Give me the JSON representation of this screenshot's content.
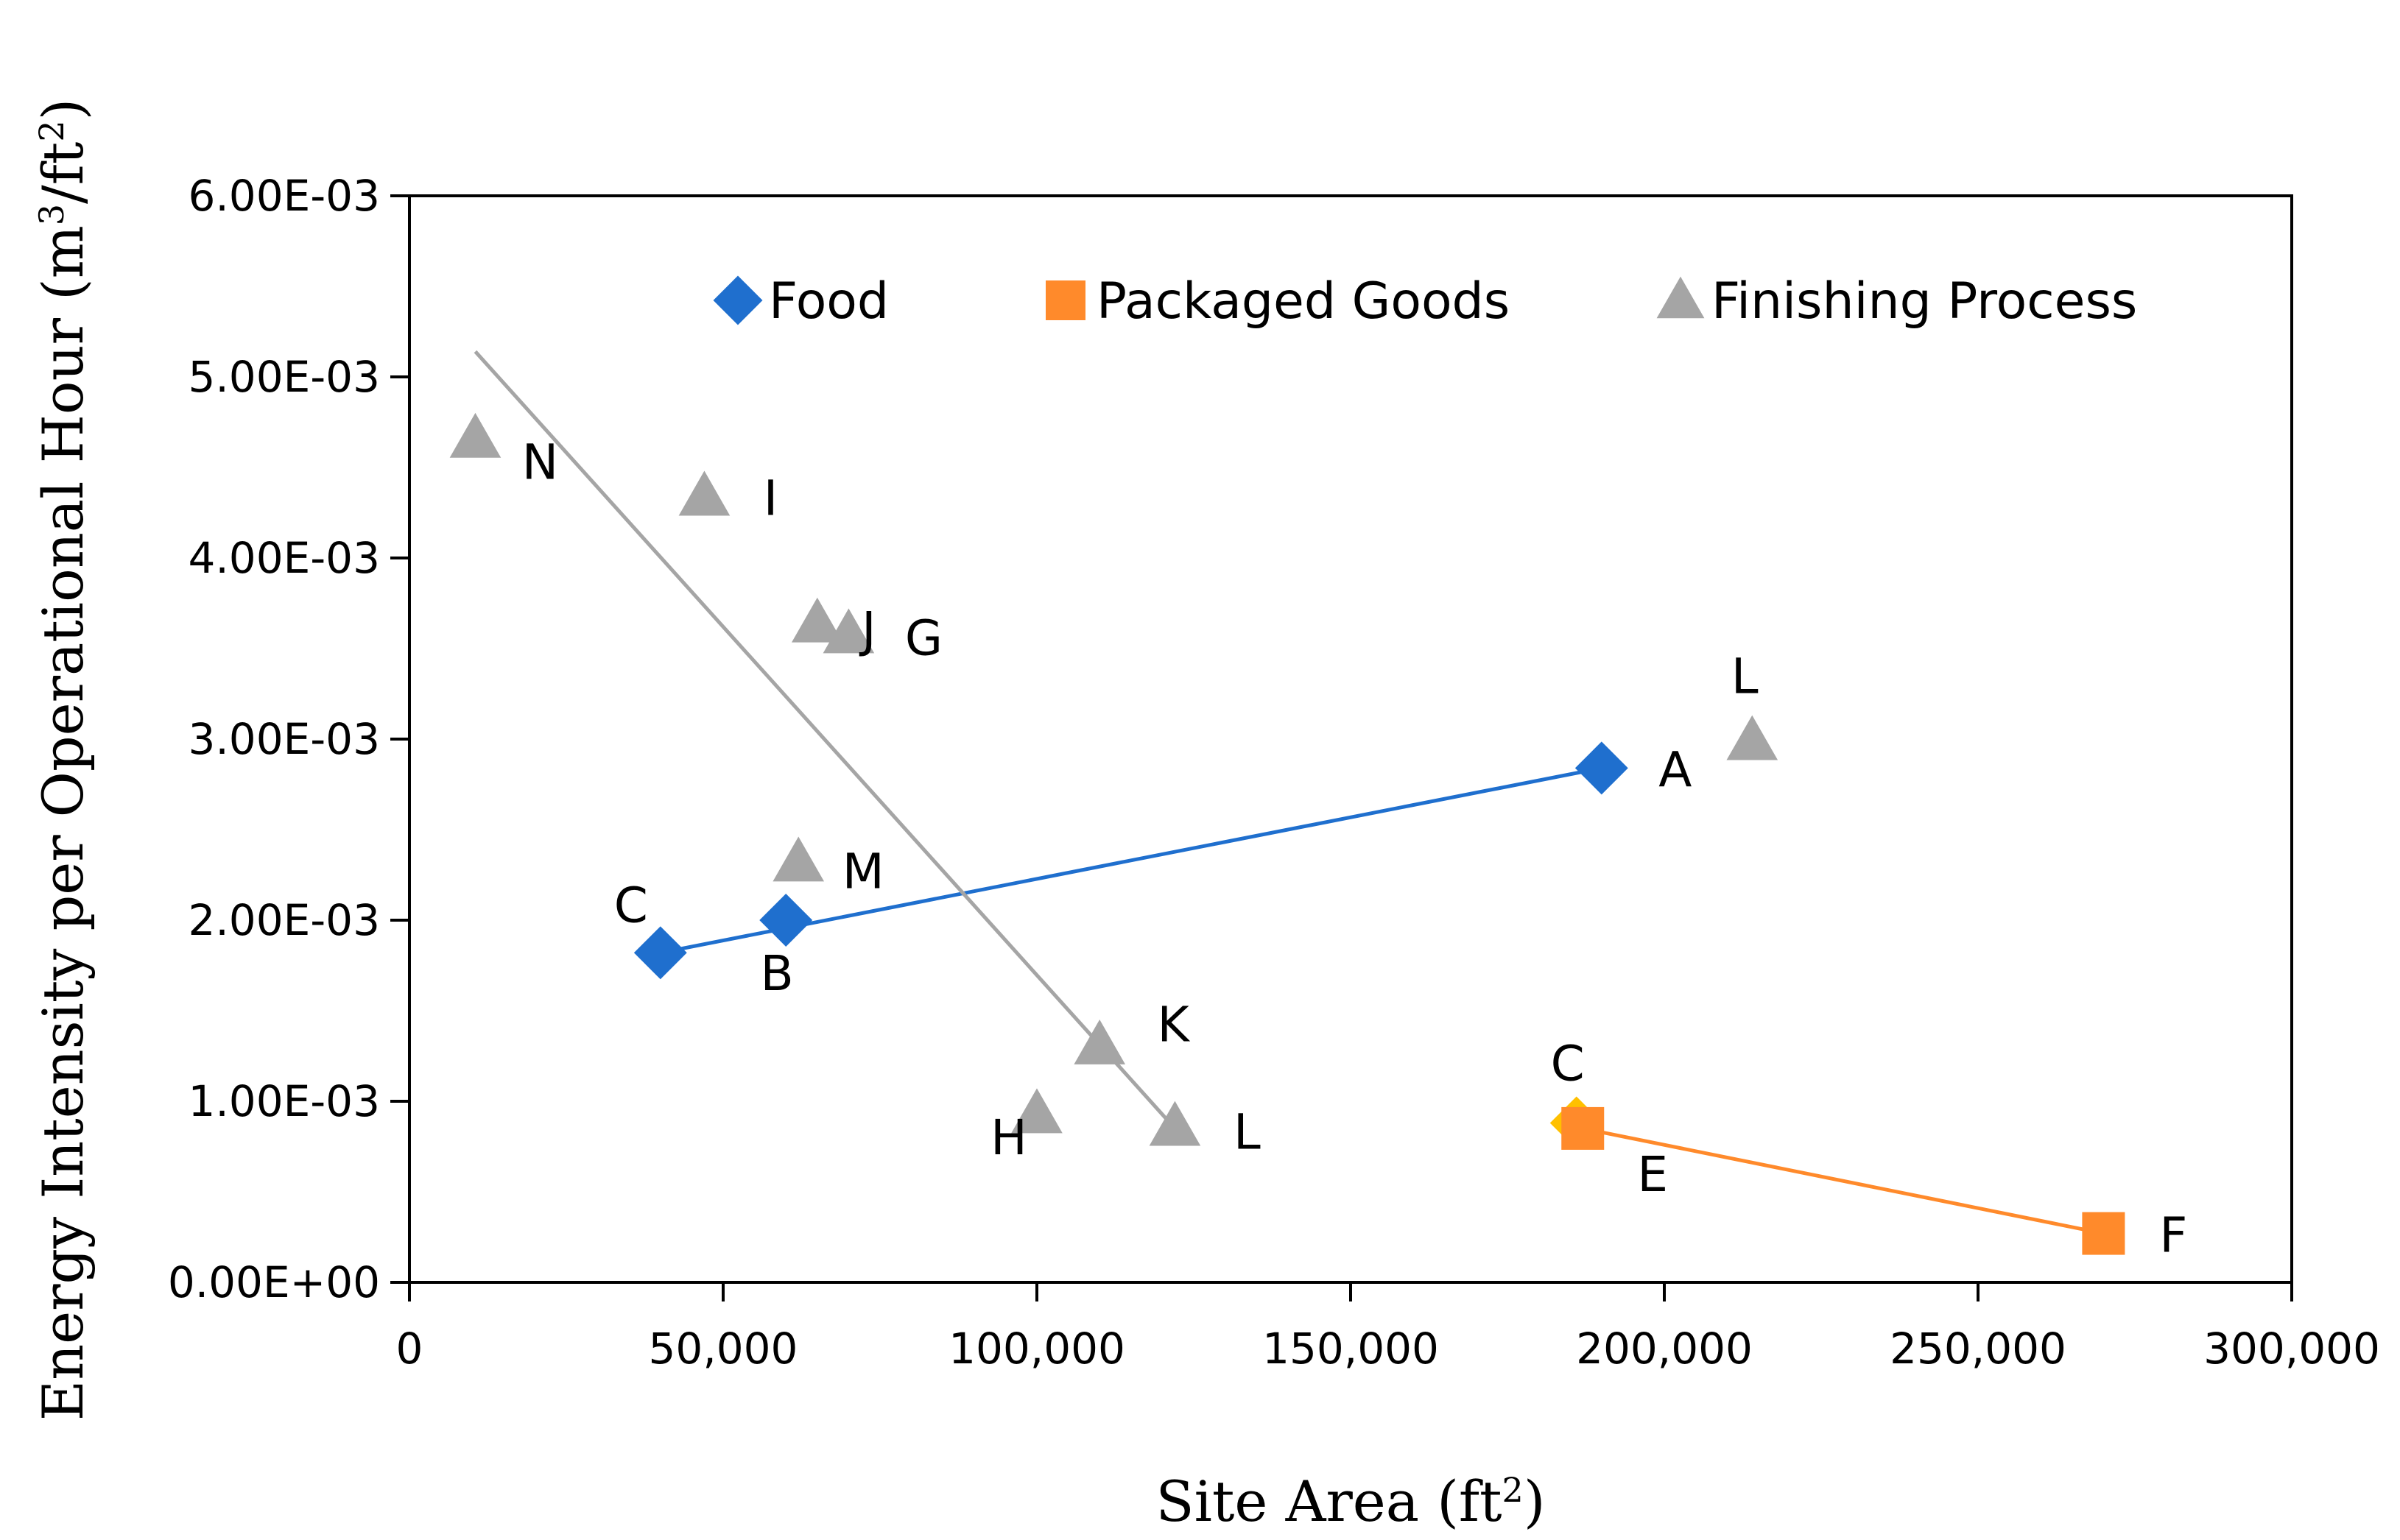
{
  "chart_data": {
    "type": "scatter",
    "title": "",
    "xlabel": {
      "main": "Site Area (ft",
      "sup": "2",
      "tail": ")"
    },
    "ylabel": {
      "main": "Energy Intensity per Operational Hour (m",
      "sup1": "3",
      "mid": "/ft",
      "sup2": "2",
      "tail": ")"
    },
    "xlim": [
      0,
      300000
    ],
    "ylim": [
      0,
      0.006
    ],
    "xticks": [
      0,
      50000,
      100000,
      150000,
      200000,
      250000,
      300000
    ],
    "xtick_labels": [
      "0",
      "50,000",
      "100,000",
      "150,000",
      "200,000",
      "250,000",
      "300,000"
    ],
    "yticks": [
      0,
      0.001,
      0.002,
      0.003,
      0.004,
      0.005,
      0.006
    ],
    "ytick_labels": [
      "0.00E+00",
      "1.00E-03",
      "2.00E-03",
      "3.00E-03",
      "4.00E-03",
      "5.00E-03",
      "6.00E-03"
    ],
    "grid": false,
    "legend_position": "top",
    "series": [
      {
        "name": "Food",
        "marker": "diamond",
        "color": "#1f6fce",
        "points": [
          {
            "label": "C",
            "x": 40000,
            "y": 0.00182
          },
          {
            "label": "B",
            "x": 60000,
            "y": 0.002
          },
          {
            "label": "A",
            "x": 190000,
            "y": 0.00284
          }
        ],
        "trendline": {
          "x": [
            40000,
            190000
          ],
          "y": [
            0.00182,
            0.00284
          ]
        }
      },
      {
        "name": "Packaged Goods",
        "marker": "square",
        "color": "#ff8a2b",
        "points": [
          {
            "label": "C",
            "x": 186000,
            "y": 0.00088,
            "color": "#ffc000",
            "marker": "diamond"
          },
          {
            "label": "E",
            "x": 187000,
            "y": 0.00085
          },
          {
            "label": "F",
            "x": 270000,
            "y": 0.00027
          }
        ],
        "trendline": {
          "x": [
            187000,
            270000
          ],
          "y": [
            0.00085,
            0.00027
          ]
        }
      },
      {
        "name": "Finishing Process",
        "marker": "triangle",
        "color": "#a5a5a5",
        "points": [
          {
            "label": "N",
            "x": 10500,
            "y": 0.00466
          },
          {
            "label": "I",
            "x": 47000,
            "y": 0.00434
          },
          {
            "label": "J",
            "x": 65000,
            "y": 0.00364
          },
          {
            "label": "G",
            "x": 70000,
            "y": 0.00358
          },
          {
            "label": "M",
            "x": 62000,
            "y": 0.00232
          },
          {
            "label": "K",
            "x": 110000,
            "y": 0.00131
          },
          {
            "label": "H",
            "x": 100000,
            "y": 0.00093
          },
          {
            "label": "L",
            "x": 122000,
            "y": 0.00086
          },
          {
            "label": "L",
            "x": 214000,
            "y": 0.00299
          }
        ],
        "trendline": {
          "x": [
            10500,
            122000
          ],
          "y": [
            0.00514,
            0.00085
          ]
        }
      }
    ]
  }
}
